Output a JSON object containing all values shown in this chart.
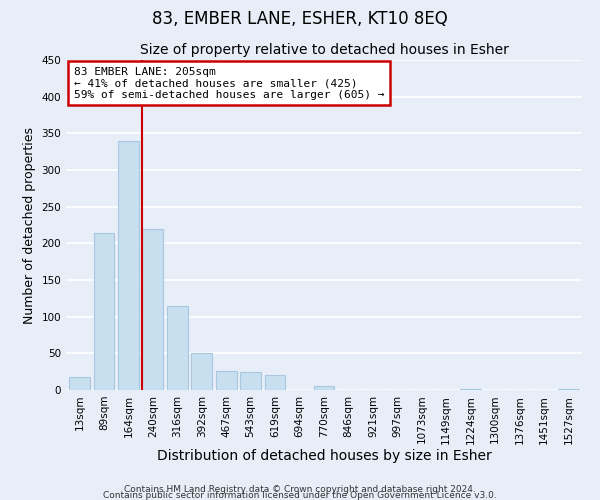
{
  "title1": "83, EMBER LANE, ESHER, KT10 8EQ",
  "title2": "Size of property relative to detached houses in Esher",
  "xlabel": "Distribution of detached houses by size in Esher",
  "ylabel": "Number of detached properties",
  "categories": [
    "13sqm",
    "89sqm",
    "164sqm",
    "240sqm",
    "316sqm",
    "392sqm",
    "467sqm",
    "543sqm",
    "619sqm",
    "694sqm",
    "770sqm",
    "846sqm",
    "921sqm",
    "997sqm",
    "1073sqm",
    "1149sqm",
    "1224sqm",
    "1300sqm",
    "1376sqm",
    "1451sqm",
    "1527sqm"
  ],
  "values": [
    18,
    214,
    340,
    220,
    115,
    50,
    26,
    25,
    20,
    0,
    6,
    0,
    0,
    0,
    0,
    0,
    2,
    0,
    0,
    0,
    1
  ],
  "bar_color": "#c8dff0",
  "bar_edge_color": "#a8c8e0",
  "vline_color": "#cc0000",
  "annotation_title": "83 EMBER LANE: 205sqm",
  "annotation_line1": "← 41% of detached houses are smaller (425)",
  "annotation_line2": "59% of semi-detached houses are larger (605) →",
  "annotation_box_facecolor": "white",
  "annotation_box_edgecolor": "#cc0000",
  "ylim": [
    0,
    450
  ],
  "yticks": [
    0,
    50,
    100,
    150,
    200,
    250,
    300,
    350,
    400,
    450
  ],
  "footnote1": "Contains HM Land Registry data © Crown copyright and database right 2024.",
  "footnote2": "Contains public sector information licensed under the Open Government Licence v3.0.",
  "background_color": "#e8eef8",
  "plot_bg_color": "#e8eef8",
  "grid_color": "white",
  "title1_fontsize": 12,
  "title2_fontsize": 10,
  "xlabel_fontsize": 10,
  "ylabel_fontsize": 9,
  "tick_fontsize": 7.5,
  "annotation_fontsize": 8,
  "footnote_fontsize": 6.5,
  "vline_x_idx": 2.54
}
